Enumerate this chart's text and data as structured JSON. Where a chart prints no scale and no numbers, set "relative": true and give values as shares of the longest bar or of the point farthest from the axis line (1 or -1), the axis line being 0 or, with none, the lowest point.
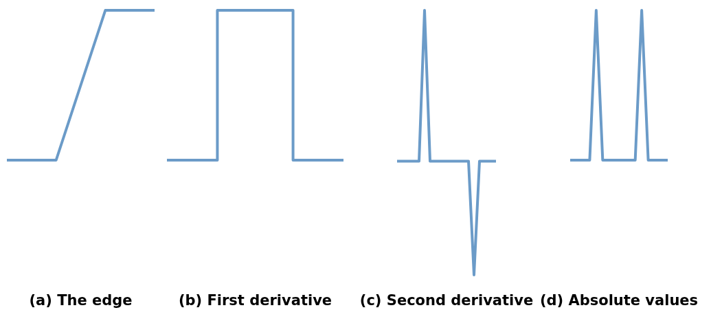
{
  "chart_data": [
    {
      "type": "line",
      "title": "(a) The edge",
      "relative": true,
      "color": "#6b9bc8",
      "categories": [
        null,
        null,
        null,
        null
      ],
      "values": [
        0,
        0,
        1,
        1
      ]
    },
    {
      "type": "step",
      "title": "(b) First derivative",
      "relative": true,
      "color": "#6b9bc8",
      "categories": [
        null,
        null,
        null,
        null,
        null,
        null,
        null,
        null
      ],
      "values": [
        0,
        0,
        1,
        1,
        1,
        0,
        0,
        0
      ]
    },
    {
      "type": "line",
      "title": "(c) Second derivative",
      "relative": true,
      "color": "#6b9bc8",
      "categories": [
        null,
        null,
        null,
        null,
        null,
        null,
        null,
        null,
        null,
        null,
        null,
        null,
        null,
        null,
        null,
        null,
        null,
        null,
        null
      ],
      "values": [
        0.43,
        0.43,
        0.43,
        0.43,
        0.43,
        1,
        0.43,
        0.43,
        0.43,
        0.43,
        0.43,
        0.43,
        0.43,
        0.43,
        0,
        0.43,
        0.43,
        0.43,
        0.43
      ]
    },
    {
      "type": "line",
      "title": "(d) Absolute values",
      "relative": true,
      "color": "#6b9bc8",
      "categories": [
        null,
        null,
        null,
        null,
        null,
        null,
        null,
        null,
        null,
        null,
        null,
        null,
        null,
        null,
        null,
        null
      ],
      "values": [
        0,
        0,
        0,
        0,
        1,
        0,
        0,
        0,
        0,
        0,
        0,
        1,
        0,
        0,
        0,
        0
      ]
    }
  ]
}
